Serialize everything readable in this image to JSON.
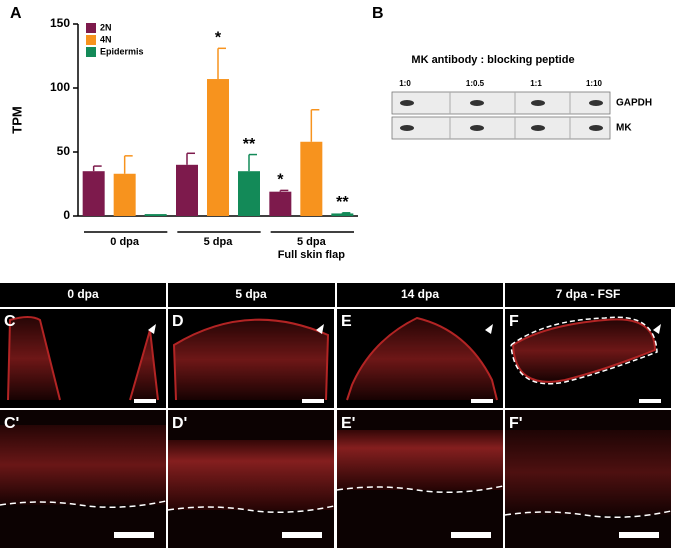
{
  "chart_data": {
    "type": "bar",
    "panel_label": "A",
    "y_label": "TPM",
    "categories": [
      "0 dpa",
      "5 dpa",
      "5 dpa\nFull skin flap"
    ],
    "series": [
      {
        "name": "2N",
        "color": "#7d1a4c",
        "values": [
          35,
          40,
          19
        ],
        "errors": [
          4,
          9,
          1
        ],
        "significance": [
          null,
          null,
          "*"
        ]
      },
      {
        "name": "4N",
        "color": "#f7931e",
        "values": [
          33,
          107,
          58
        ],
        "errors": [
          14,
          24,
          25
        ],
        "significance": [
          null,
          "*",
          null
        ]
      },
      {
        "name": "Epidermis",
        "color": "#138a58",
        "values": [
          1.5,
          35,
          2
        ],
        "errors": [
          0,
          13,
          0.5
        ],
        "significance": [
          null,
          "**",
          "**"
        ]
      }
    ],
    "ylim": [
      0,
      150
    ],
    "yticks": [
      0,
      50,
      100,
      150
    ],
    "legend": "top-left"
  },
  "panel_b": {
    "label": "B",
    "title": "MK antibody : blocking peptide",
    "lanes": [
      "1:0",
      "1:0.5",
      "1:1",
      "1:10"
    ],
    "rows": [
      "GAPDH",
      "MK"
    ]
  },
  "panels": {
    "headers": [
      "0 dpa",
      "5 dpa",
      "14 dpa",
      "7 dpa - FSF"
    ],
    "top_labels": [
      "C",
      "D",
      "E",
      "F"
    ],
    "bottom_labels": [
      "C'",
      "D'",
      "E'",
      "F'"
    ]
  }
}
